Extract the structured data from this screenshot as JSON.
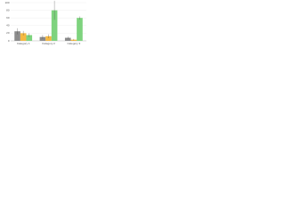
{
  "chart_data": {
    "type": "bar",
    "categories": [
      "Category 1",
      "Category 2",
      "Category 3"
    ],
    "series": [
      {
        "color": "#8c8c8c",
        "values": [
          25,
          10,
          8
        ],
        "errors": [
          8,
          5,
          3
        ]
      },
      {
        "color": "#f5b942",
        "values": [
          20,
          12,
          3
        ],
        "errors": [
          6,
          5,
          2
        ]
      },
      {
        "color": "#7ed37e",
        "values": [
          15,
          80,
          60
        ],
        "errors": [
          5,
          25,
          4
        ]
      }
    ],
    "ylim": [
      0,
      100
    ],
    "yticks": [
      0,
      20,
      40,
      60,
      80,
      100
    ],
    "grid": true
  }
}
